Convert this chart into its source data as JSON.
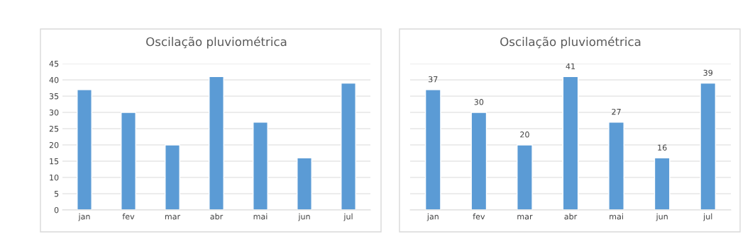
{
  "chart_data": [
    {
      "type": "bar",
      "title": "Oscilação pluviométrica",
      "categories": [
        "jan",
        "fev",
        "mar",
        "abr",
        "mai",
        "jun",
        "jul"
      ],
      "values": [
        37,
        30,
        20,
        41,
        27,
        16,
        39
      ],
      "color": "#5b9bd5",
      "ylim": [
        0,
        45
      ],
      "yticks": [
        0,
        5,
        10,
        15,
        20,
        25,
        30,
        35,
        40,
        45
      ],
      "grid": "y",
      "legend": false
    },
    {
      "type": "bar",
      "title": "Oscilação pluviométrica",
      "categories": [
        "jan",
        "fev",
        "mar",
        "abr",
        "mai",
        "jun",
        "jul"
      ],
      "values": [
        37,
        30,
        20,
        41,
        27,
        16,
        39
      ],
      "color": "#5b9bd5",
      "ylim": [
        0,
        45
      ],
      "yticks": [
        {
          "value": 0,
          "label": null
        },
        {
          "value": 5,
          "label": null
        },
        {
          "value": 10,
          "label": null
        },
        {
          "value": 15,
          "label": null
        },
        {
          "value": 20,
          "label": null
        },
        {
          "value": 25,
          "label": null
        },
        {
          "value": 30,
          "label": null
        },
        {
          "value": 35,
          "label": null
        },
        {
          "value": 40,
          "label": null
        },
        {
          "value": 45,
          "label": null
        }
      ],
      "grid": "y",
      "legend": false,
      "tick_labels": "x",
      "data_labels": true
    }
  ]
}
